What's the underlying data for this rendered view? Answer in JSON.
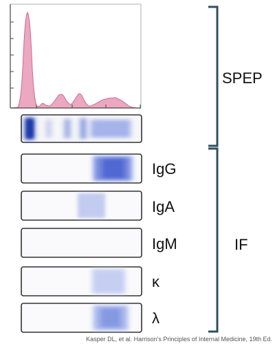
{
  "groups": [
    {
      "label": "SPEP"
    },
    {
      "label": "IF"
    }
  ],
  "lanes": [
    {
      "label": "IgG"
    },
    {
      "label": "IgA"
    },
    {
      "label": "IgM"
    },
    {
      "label": "κ"
    },
    {
      "label": "λ"
    }
  ],
  "citation": "Kasper DL, et al. Harrison's Principles of Internal Medicine, 19th Ed.",
  "colors": {
    "trace_fill": "#eba8c0",
    "trace_stroke": "#d06a90",
    "band": "#5f78d8",
    "band_dark": "#2c45b8",
    "bracket": "#2f4f60",
    "lane_border": "#333333"
  }
}
